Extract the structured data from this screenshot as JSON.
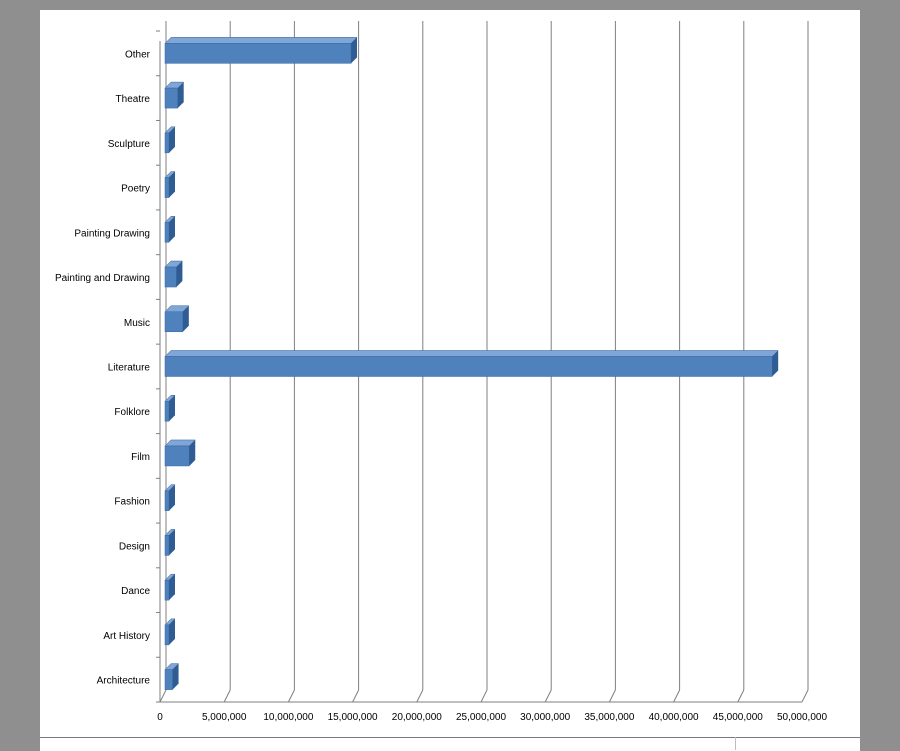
{
  "chart_data": {
    "type": "bar",
    "orientation": "horizontal",
    "style": "3d",
    "bar_color": "#4F81BD",
    "categories": [
      "Architecture",
      "Art History",
      "Dance",
      "Design",
      "Fashion",
      "Film",
      "Folklore",
      "Literature",
      "Music",
      "Painting and Drawing",
      "Painting Drawing",
      "Poetry",
      "Sculpture",
      "Theatre",
      "Other"
    ],
    "values": [
      900000,
      500000,
      250000,
      400000,
      250000,
      2200000,
      500000,
      47600000,
      1700000,
      1200000,
      250000,
      300000,
      300000,
      1300000,
      14800000
    ],
    "xlim": [
      0,
      50000000
    ],
    "xticks": [
      "0",
      "5,000,000",
      "10,000,000",
      "15,000,000",
      "20,000,000",
      "25,000,000",
      "30,000,000",
      "35,000,000",
      "40,000,000",
      "45,000,000",
      "50,000,000"
    ],
    "grid": "vertical",
    "title": "",
    "xlabel": "",
    "ylabel": "",
    "legend": "none"
  }
}
